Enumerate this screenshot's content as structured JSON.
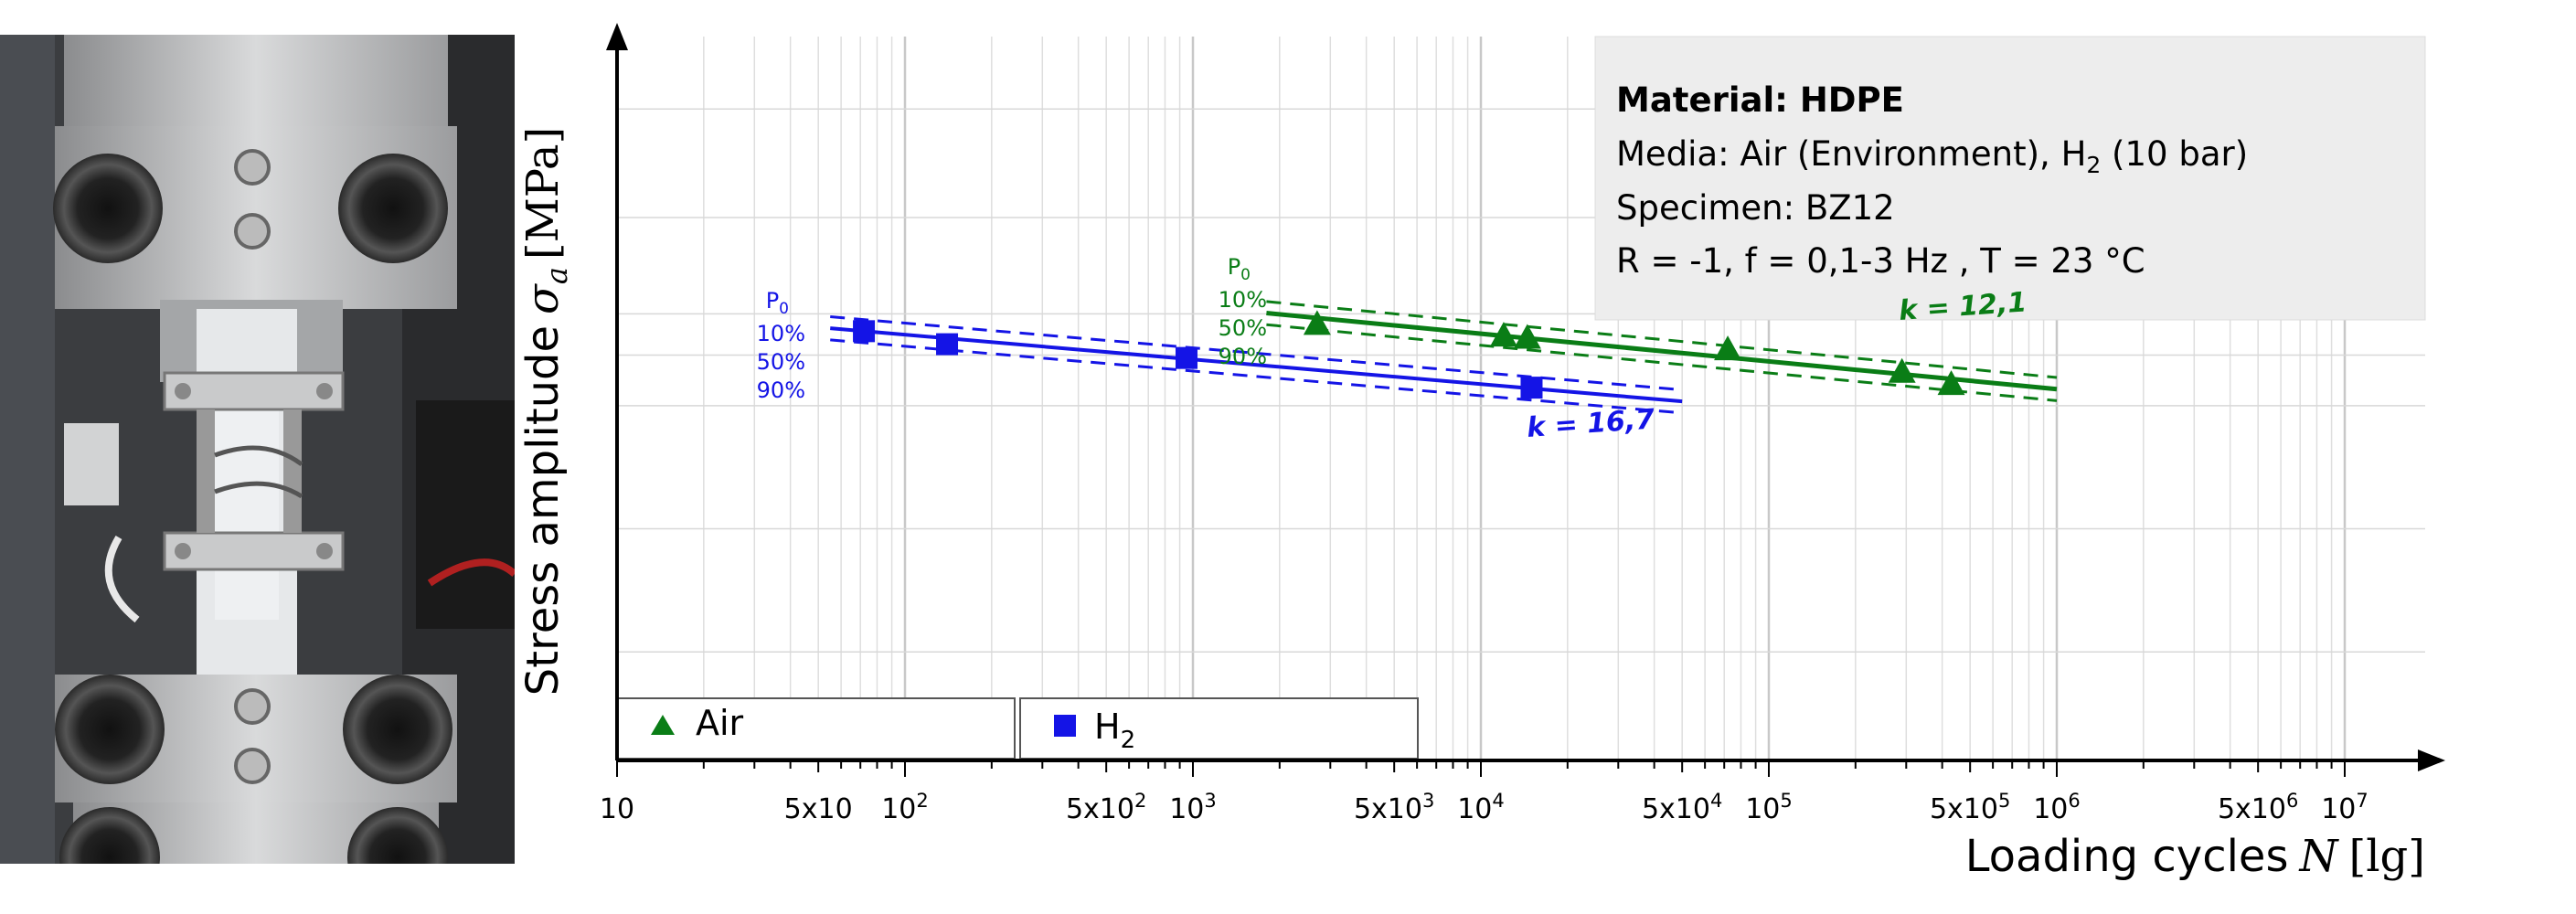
{
  "photo": {
    "description": "test-specimen-in-grips"
  },
  "chart_data": {
    "type": "scatter",
    "xscale": "log",
    "xlim": [
      10,
      20000000
    ],
    "xlabel_main": "Loading cycles",
    "xlabel_var": "N",
    "xlabel_unit": "[lg]",
    "ylabel_main": "Stress amplitude",
    "ylabel_var": "σ",
    "ylabel_sub": "a",
    "ylabel_unit": "[MPa]",
    "x_ticks": [
      {
        "value": 10,
        "label": "10",
        "kind": "plain"
      },
      {
        "value": 50,
        "label": "5x10",
        "kind": "plain"
      },
      {
        "value": 100,
        "base": "10",
        "exp": "2",
        "kind": "pow"
      },
      {
        "value": 500,
        "base": "5x10",
        "exp": "2",
        "kind": "pow"
      },
      {
        "value": 1000,
        "base": "10",
        "exp": "3",
        "kind": "pow"
      },
      {
        "value": 5000,
        "base": "5x10",
        "exp": "3",
        "kind": "pow"
      },
      {
        "value": 10000,
        "base": "10",
        "exp": "4",
        "kind": "pow"
      },
      {
        "value": 50000,
        "base": "5x10",
        "exp": "4",
        "kind": "pow"
      },
      {
        "value": 100000,
        "base": "10",
        "exp": "5",
        "kind": "pow"
      },
      {
        "value": 500000,
        "base": "5x10",
        "exp": "5",
        "kind": "pow"
      },
      {
        "value": 1000000,
        "base": "10",
        "exp": "6",
        "kind": "pow"
      },
      {
        "value": 5000000,
        "base": "5x10",
        "exp": "6",
        "kind": "pow"
      },
      {
        "value": 10000000,
        "base": "10",
        "exp": "7",
        "kind": "pow"
      }
    ],
    "grid": true,
    "series": [
      {
        "name": "Air",
        "color": "#0a7d16",
        "marker": "triangle",
        "points": [
          {
            "x": 2700,
            "y": 0.603
          },
          {
            "x": 12000,
            "y": 0.587
          },
          {
            "x": 14500,
            "y": 0.584
          },
          {
            "x": 72000,
            "y": 0.568
          },
          {
            "x": 290000,
            "y": 0.537
          },
          {
            "x": 430000,
            "y": 0.52
          }
        ],
        "fit": {
          "x1": 1800,
          "y1": 0.618,
          "x2": 1000000,
          "y2": 0.513
        },
        "band_offset": 0.016,
        "slope_label": "k = 12,1",
        "percentiles": {
          "header": "P",
          "header_sub": "0",
          "values": [
            "10%",
            "50%",
            "90%"
          ]
        }
      },
      {
        "name": "H",
        "name_sub": "2",
        "color": "#1414e6",
        "marker": "square",
        "points": [
          {
            "x": 72,
            "y": 0.593
          },
          {
            "x": 140,
            "y": 0.575
          },
          {
            "x": 950,
            "y": 0.556
          },
          {
            "x": 15000,
            "y": 0.515
          }
        ],
        "fit": {
          "x1": 55,
          "y1": 0.597,
          "x2": 50000,
          "y2": 0.496
        },
        "band_offset": 0.016,
        "slope_label": "k = 16,7",
        "percentiles": {
          "header": "P",
          "header_sub": "0",
          "values": [
            "10%",
            "50%",
            "90%"
          ]
        }
      }
    ],
    "info_box": {
      "material": "Material: HDPE",
      "media_prefix": "Media:  Air (Environment), H",
      "media_sub": "2",
      "media_suffix": " (10 bar)",
      "specimen": "Specimen:  BZ12",
      "conditions": "R = -1, f = 0,1-3 Hz , T = 23 °C"
    }
  }
}
